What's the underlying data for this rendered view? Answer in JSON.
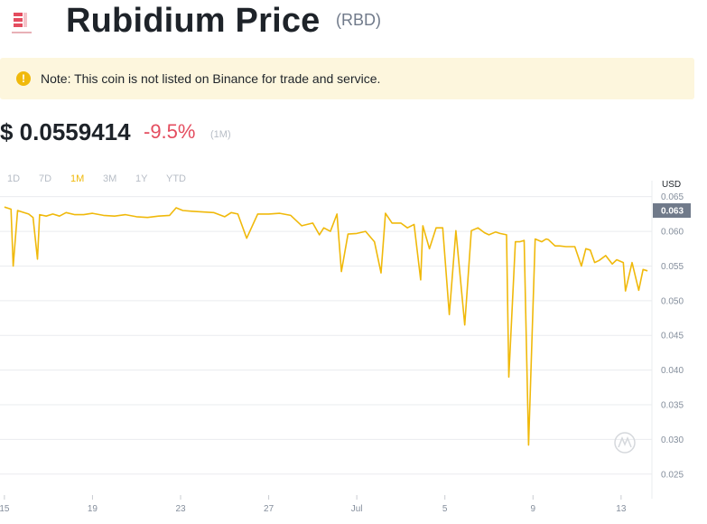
{
  "header": {
    "title": "Rubidium Price",
    "symbol": "(RBD)"
  },
  "note": {
    "text": "Note: This coin is not listed on Binance for trade and service."
  },
  "price": {
    "value": "$ 0.0559414",
    "change": "-9.5%",
    "period": "(1M)"
  },
  "ranges": {
    "items": [
      "1D",
      "7D",
      "1M",
      "3M",
      "1Y",
      "YTD"
    ],
    "active": "1M"
  },
  "colors": {
    "line": "#f0b90b",
    "negative": "#e44d5f",
    "current_tag": "#707a8a"
  },
  "chart_data": {
    "type": "line",
    "currency_label": "USD",
    "current_value_label": "0.063",
    "x_tick_labels": [
      "15",
      "19",
      "23",
      "27",
      "Jul",
      "5",
      "9",
      "13"
    ],
    "y_tick_labels": [
      "0.065",
      "0.060",
      "0.055",
      "0.050",
      "0.045",
      "0.040",
      "0.035",
      "0.030",
      "0.025"
    ],
    "ylim": [
      0.0225,
      0.066
    ],
    "xlim": [
      14.8,
      44.4
    ],
    "grid": true,
    "x": [
      15,
      15.3,
      15.4,
      15.6,
      15.8,
      16.1,
      16.3,
      16.5,
      16.6,
      16.9,
      17.2,
      17.5,
      17.8,
      18.2,
      18.6,
      19,
      19.5,
      20,
      20.5,
      21,
      21.5,
      22,
      22.5,
      22.8,
      23.1,
      23.5,
      24,
      24.5,
      25,
      25.3,
      25.6,
      26,
      26.5,
      27,
      27.5,
      28,
      28.5,
      29,
      29.3,
      29.5,
      29.8,
      30.1,
      30.3,
      30.6,
      31,
      31.4,
      31.8,
      32.1,
      32.3,
      32.6,
      33,
      33.3,
      33.6,
      33.9,
      34,
      34.3,
      34.6,
      34.9,
      35.2,
      35.5,
      35.9,
      36.2,
      36.5,
      36.8,
      37,
      37.3,
      37.5,
      37.8,
      37.9,
      38.2,
      38.4,
      38.6,
      38.8,
      39.1,
      39.4,
      39.6,
      39.7,
      40,
      40.2,
      40.5,
      40.9,
      41.2,
      41.4,
      41.6,
      41.8,
      42,
      42.3,
      42.6,
      42.8,
      43.1,
      43.2,
      43.5,
      43.8,
      44,
      44.2
    ],
    "values": [
      0.0635,
      0.0632,
      0.055,
      0.063,
      0.0628,
      0.0625,
      0.062,
      0.056,
      0.0624,
      0.0622,
      0.0625,
      0.0622,
      0.0627,
      0.0624,
      0.0624,
      0.0626,
      0.0623,
      0.0622,
      0.0624,
      0.0621,
      0.062,
      0.0622,
      0.0623,
      0.0634,
      0.063,
      0.0629,
      0.0628,
      0.0627,
      0.0621,
      0.0627,
      0.0625,
      0.059,
      0.0625,
      0.0625,
      0.0626,
      0.0623,
      0.0608,
      0.0612,
      0.0595,
      0.0605,
      0.06,
      0.0625,
      0.0542,
      0.0596,
      0.0597,
      0.06,
      0.0585,
      0.054,
      0.0626,
      0.0612,
      0.0612,
      0.0605,
      0.061,
      0.053,
      0.0608,
      0.0575,
      0.0605,
      0.0605,
      0.048,
      0.0601,
      0.0465,
      0.0601,
      0.0605,
      0.0598,
      0.0595,
      0.0599,
      0.0597,
      0.0595,
      0.039,
      0.0585,
      0.0585,
      0.0587,
      0.0292,
      0.0589,
      0.0585,
      0.0589,
      0.0588,
      0.0579,
      0.0579,
      0.0578,
      0.0578,
      0.055,
      0.0575,
      0.0573,
      0.0555,
      0.0558,
      0.0565,
      0.0553,
      0.0559,
      0.0555,
      0.0514,
      0.0555,
      0.0515,
      0.0545,
      0.0543
    ]
  }
}
